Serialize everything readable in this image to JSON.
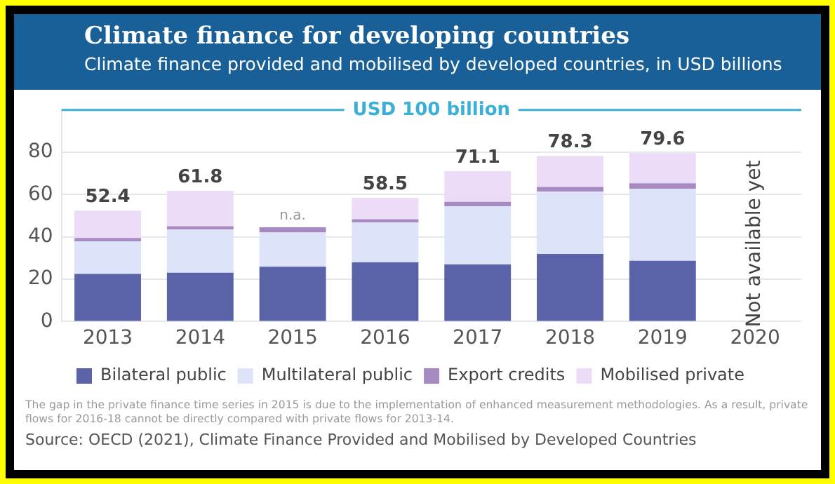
{
  "chart_data": {
    "type": "bar",
    "stacked": true,
    "title": "Climate finance for developing countries",
    "subtitle": "Climate finance provided and mobilised by developed countries, in USD billions",
    "categories": [
      "2013",
      "2014",
      "2015",
      "2016",
      "2017",
      "2018",
      "2019",
      "2020"
    ],
    "series": [
      {
        "name": "Bilateral public",
        "color": "#5a62a8",
        "values": [
          22.5,
          23.1,
          25.9,
          28.0,
          27.0,
          32.0,
          28.7,
          null
        ]
      },
      {
        "name": "Multilateral public",
        "color": "#dde3f8",
        "values": [
          15.4,
          20.4,
          16.2,
          18.9,
          27.5,
          29.5,
          34.1,
          null
        ]
      },
      {
        "name": "Export credits",
        "color": "#a78bc0",
        "values": [
          1.6,
          1.6,
          2.5,
          1.5,
          2.1,
          2.1,
          2.6,
          null
        ]
      },
      {
        "name": "Mobilised private",
        "color": "#ecdcf8",
        "values": [
          12.9,
          16.7,
          null,
          10.1,
          14.5,
          14.7,
          14.2,
          null
        ]
      }
    ],
    "totals": [
      "52.4",
      "61.8",
      "n.a.",
      "58.5",
      "71.1",
      "78.3",
      "79.6",
      null
    ],
    "ylim": [
      0,
      100
    ],
    "yticks": [
      0,
      20,
      40,
      60,
      80
    ],
    "grid": "y",
    "legend": "bottom",
    "ref_lines": [
      {
        "axis": "y",
        "value": 100,
        "label": "USD 100 billion",
        "color": "#3bb0d6"
      }
    ],
    "annotations": [
      "Not available yet",
      "The gap in the private finance time series in 2015 is due to the implementation of enhanced measurement methodologies. As a result, private flows for 2016-18 cannot be directly compared with private flows for 2013-14.",
      "Source: OECD (2021), Climate Finance Provided and Mobilised by Developed Countries"
    ]
  }
}
